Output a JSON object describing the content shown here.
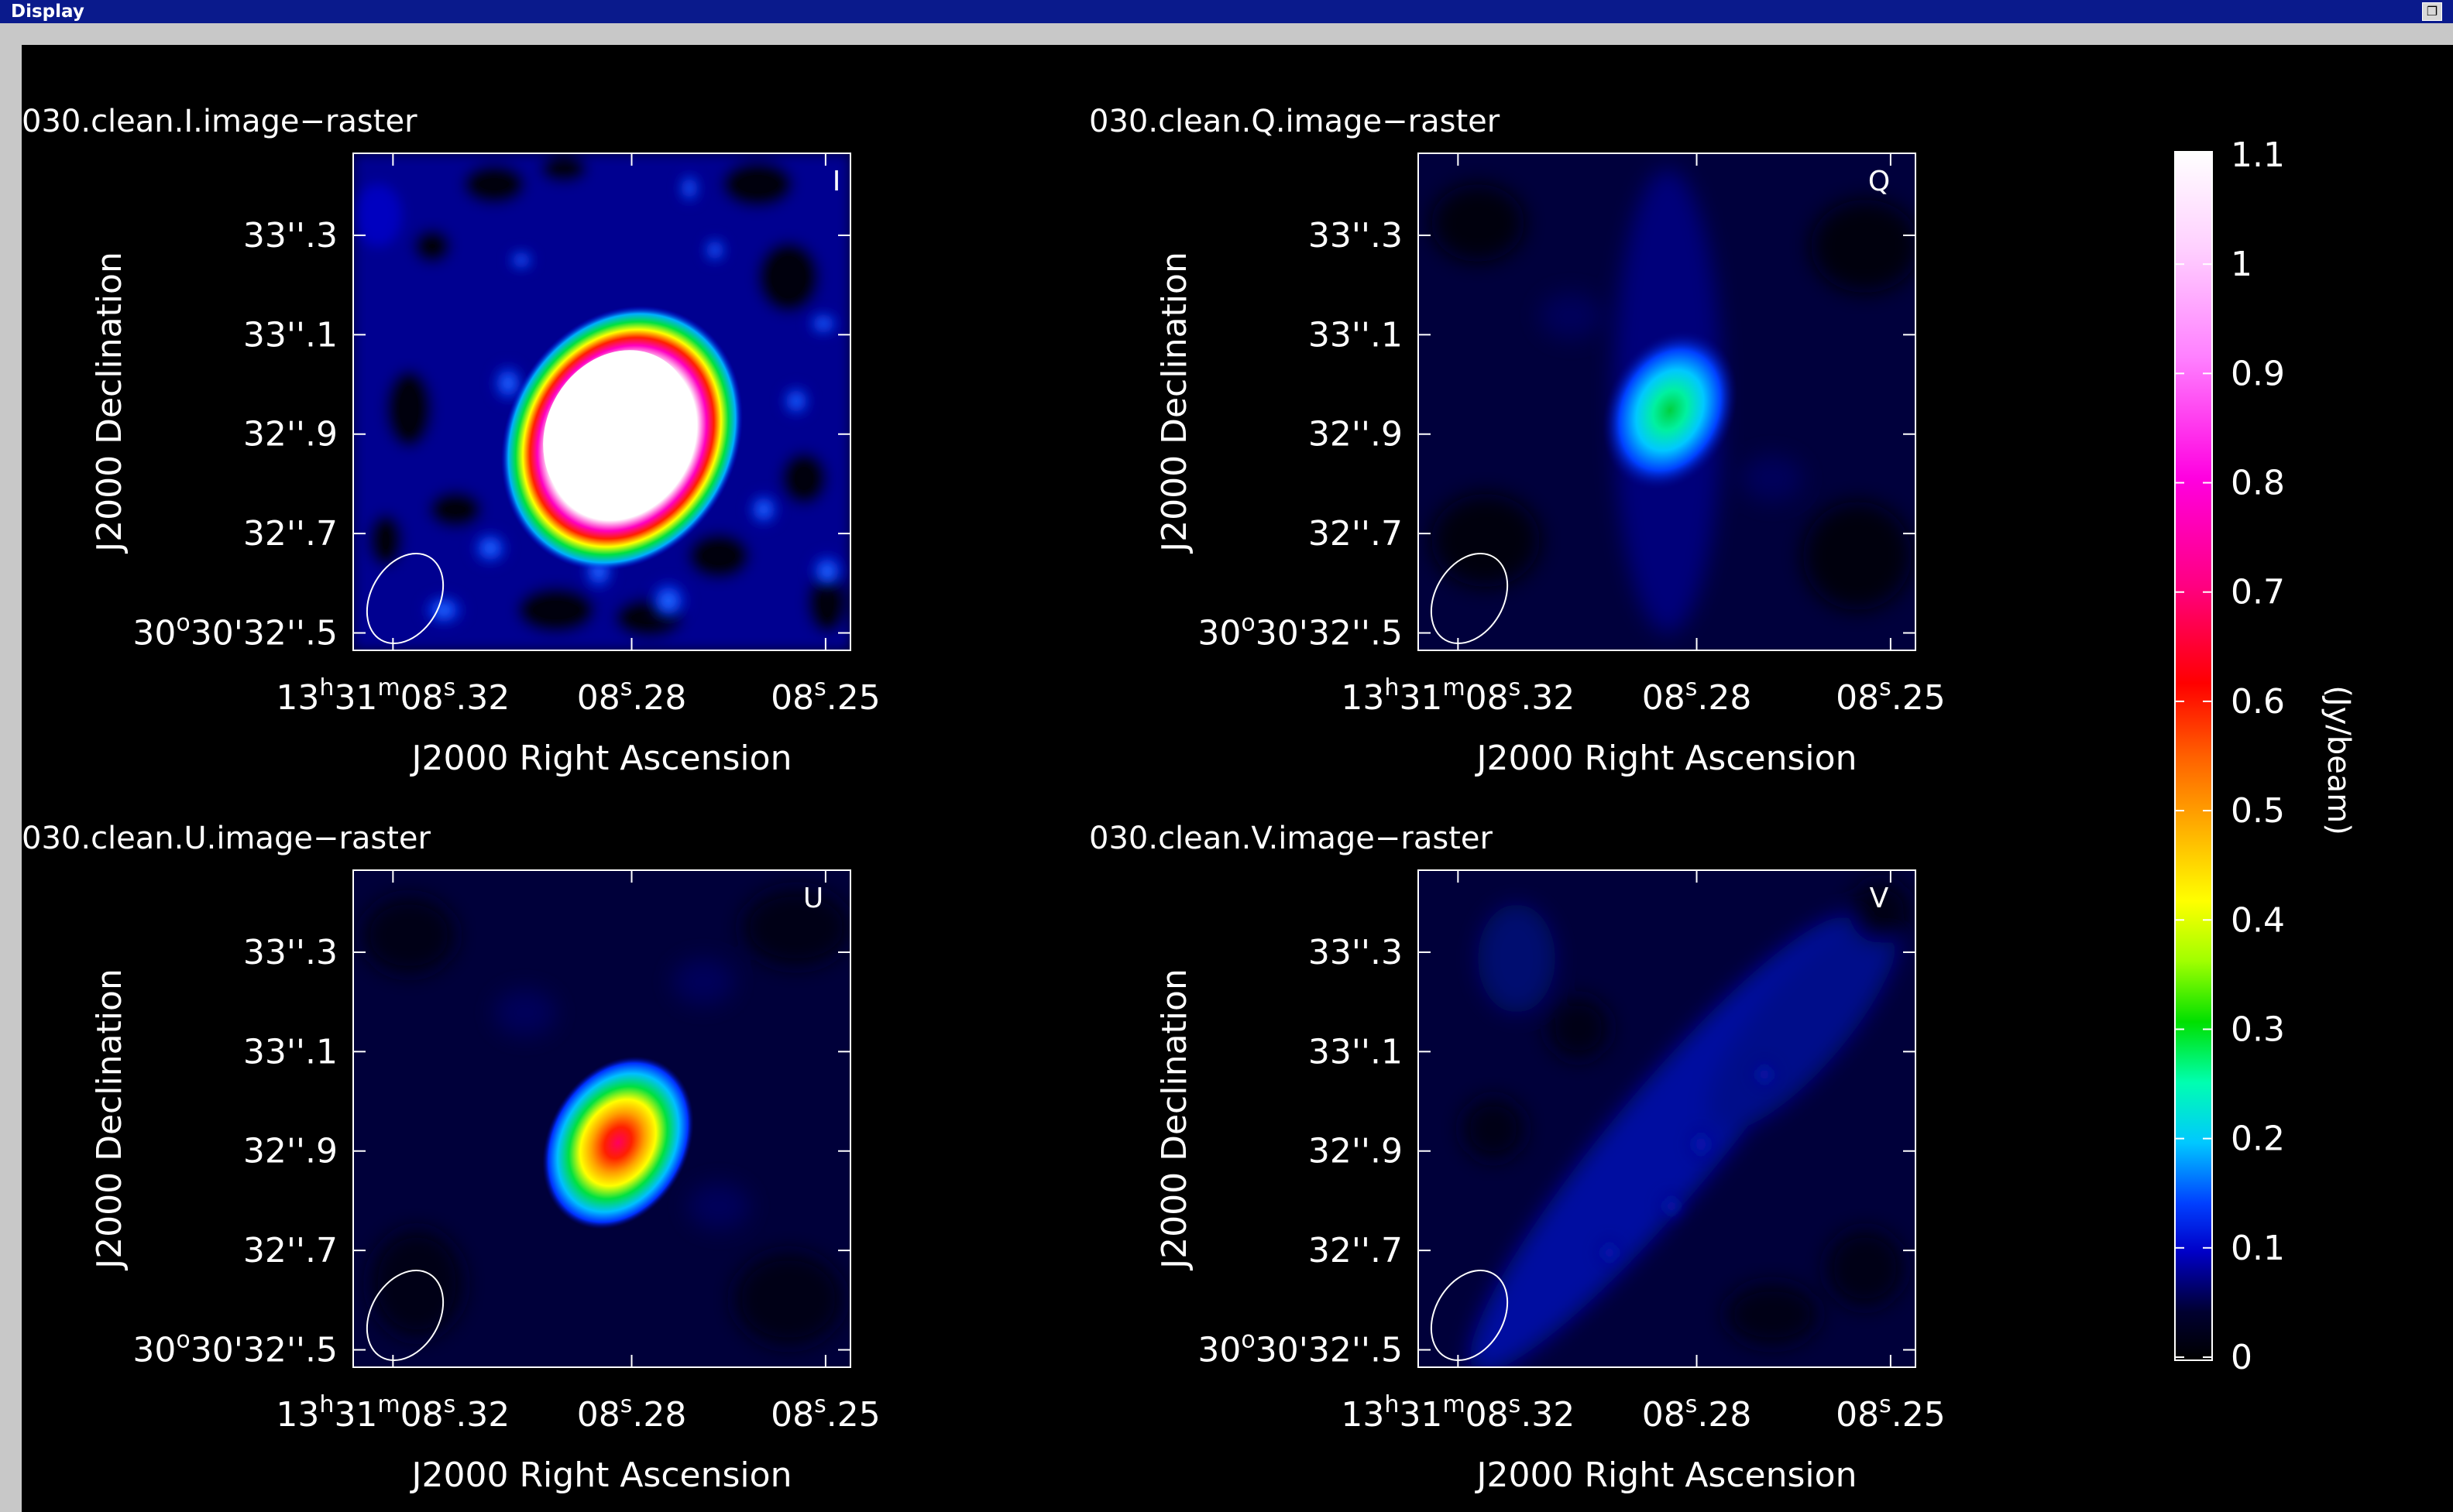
{
  "window": {
    "title": "Display"
  },
  "panels": [
    {
      "id": "I",
      "title": "030.clean.I.image−raster",
      "stokes": "I"
    },
    {
      "id": "Q",
      "title": "030.clean.Q.image−raster",
      "stokes": "Q"
    },
    {
      "id": "U",
      "title": "030.clean.U.image−raster",
      "stokes": "U"
    },
    {
      "id": "V",
      "title": "030.clean.V.image−raster",
      "stokes": "V"
    }
  ],
  "axes": {
    "xlabel": "J2000 Right Ascension",
    "ylabel": "J2000 Declination",
    "xticks": [
      {
        "h": "13",
        "m": "31",
        "s": "08",
        "frac": ".32"
      },
      {
        "h": "",
        "m": "",
        "s": "08",
        "frac": ".28"
      },
      {
        "h": "",
        "m": "",
        "s": "08",
        "frac": ".25"
      }
    ],
    "yticks": [
      {
        "deg": "",
        "min": "",
        "sec": "33",
        "frac": ".3"
      },
      {
        "deg": "",
        "min": "",
        "sec": "33",
        "frac": ".1"
      },
      {
        "deg": "",
        "min": "",
        "sec": "32",
        "frac": ".9"
      },
      {
        "deg": "",
        "min": "",
        "sec": "32",
        "frac": ".7"
      },
      {
        "deg": "30",
        "min": "30",
        "sec": "32",
        "frac": ".5"
      }
    ]
  },
  "colorbar": {
    "label": "(Jy/beam)",
    "ticks": [
      "1.1",
      "1",
      "0.9",
      "0.8",
      "0.7",
      "0.6",
      "0.5",
      "0.4",
      "0.3",
      "0.2",
      "0.1",
      "0"
    ],
    "values": [
      1.1,
      1.0,
      0.9,
      0.8,
      0.7,
      0.6,
      0.5,
      0.4,
      0.3,
      0.2,
      0.1,
      0
    ],
    "range": [
      0,
      1.1
    ]
  },
  "colors": {
    "background": "#000000",
    "axes": "#ffffff",
    "titlebar": "#0a1a8c"
  }
}
